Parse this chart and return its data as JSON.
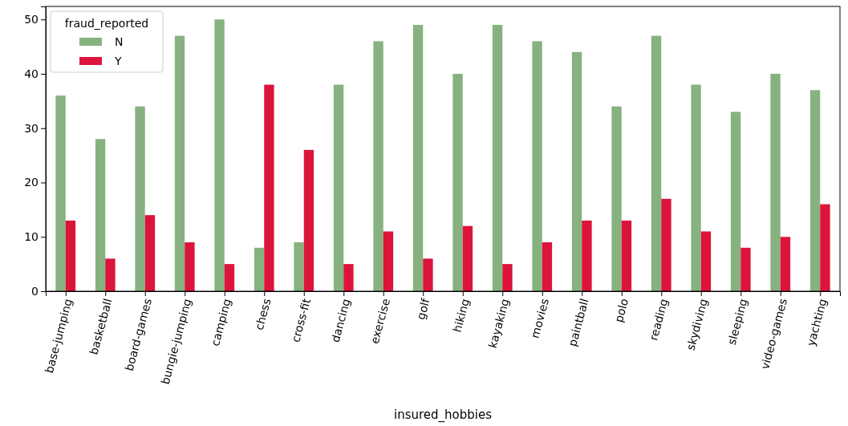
{
  "chart_data": {
    "type": "bar",
    "xlabel": "insured_hobbies",
    "legend_title": "fraud_reported",
    "legend": "top left",
    "categories": [
      "base-jumping",
      "basketball",
      "board-games",
      "bungie-jumping",
      "camping",
      "chess",
      "cross-fit",
      "dancing",
      "exercise",
      "golf",
      "hiking",
      "kayaking",
      "movies",
      "paintball",
      "polo",
      "reading",
      "skydiving",
      "sleeping",
      "video-games",
      "yachting"
    ],
    "series": [
      {
        "name": "N",
        "color": "#86b27f",
        "values": [
          36,
          28,
          34,
          47,
          50,
          8,
          9,
          38,
          46,
          49,
          40,
          49,
          46,
          44,
          34,
          47,
          38,
          33,
          40,
          37
        ]
      },
      {
        "name": "Y",
        "color": "#dc143c",
        "values": [
          13,
          6,
          14,
          9,
          5,
          38,
          26,
          5,
          11,
          6,
          12,
          5,
          9,
          13,
          13,
          17,
          11,
          8,
          10,
          16
        ]
      }
    ],
    "ylim": [
      0,
      52.4
    ],
    "yticks": [
      0,
      10,
      20,
      30,
      40,
      50
    ],
    "grid": false
  }
}
